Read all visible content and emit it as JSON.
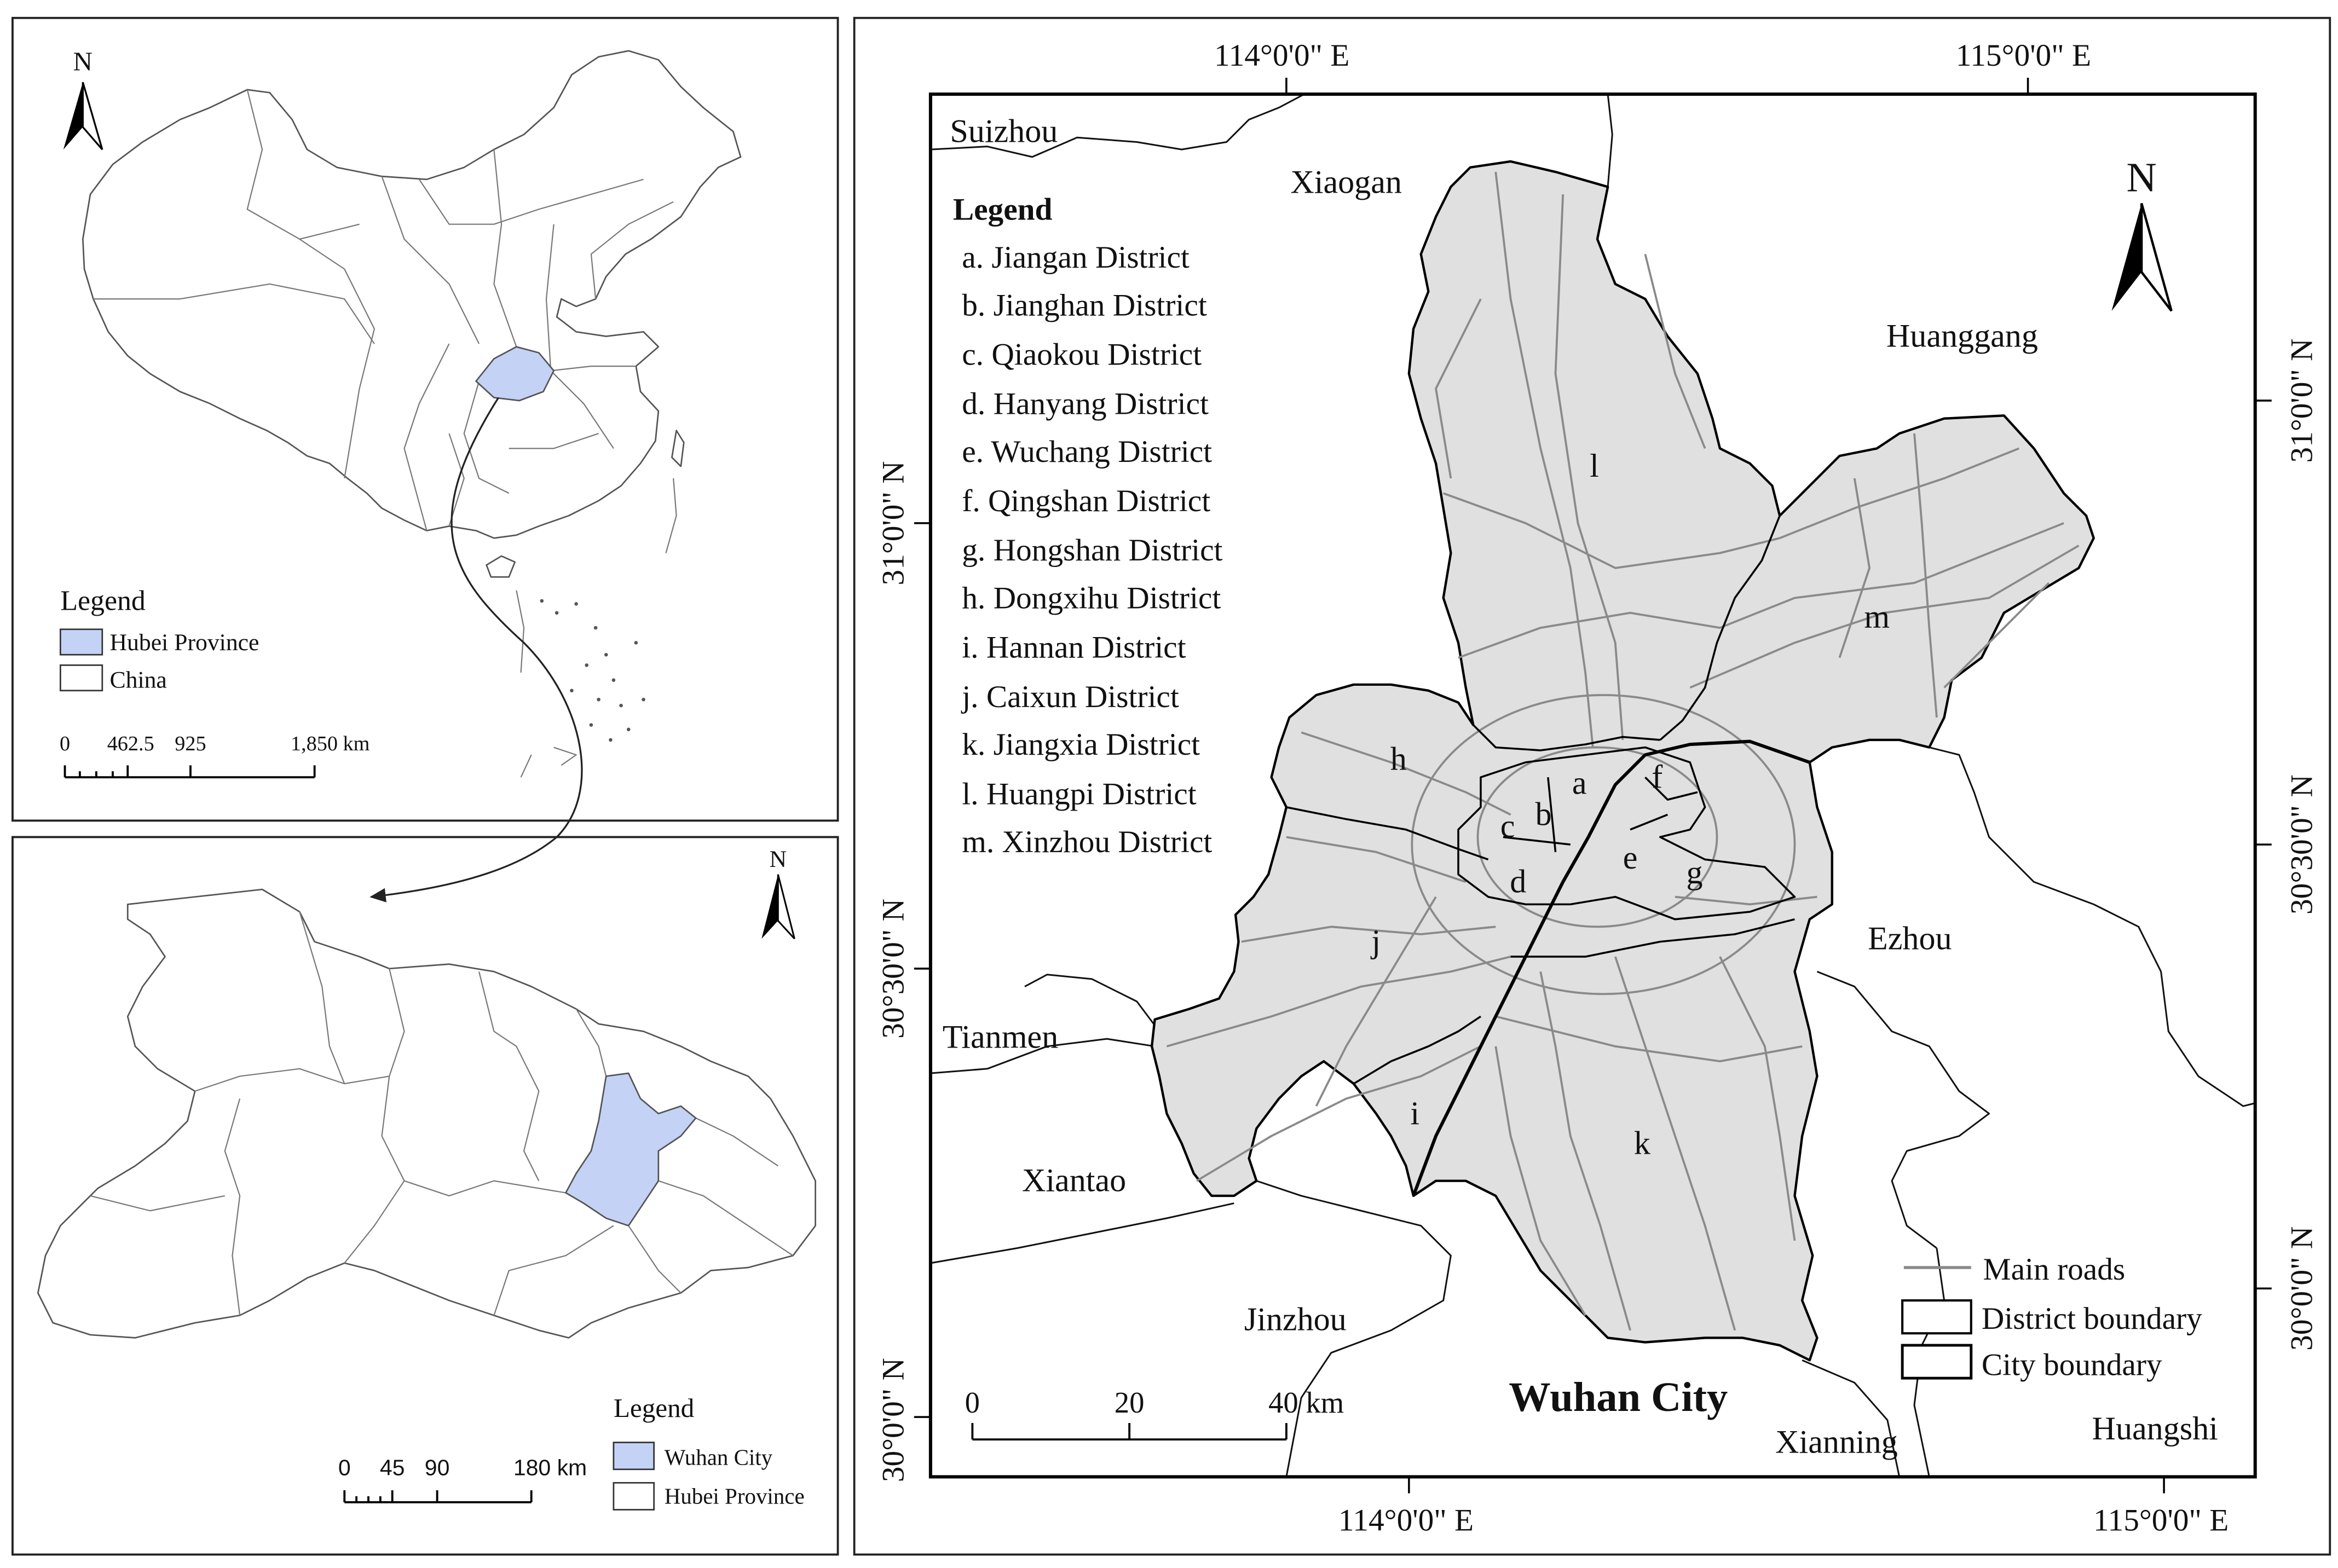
{
  "china_panel": {
    "north_label": "N",
    "legend_title": "Legend",
    "legend_items": [
      {
        "label": "Hubei Province",
        "color": "#c4d2f5"
      },
      {
        "label": "China",
        "color": "#ffffff"
      }
    ],
    "scale_labels": [
      "0",
      "462.5",
      "925",
      "1,850 km"
    ]
  },
  "hubei_panel": {
    "north_label": "N",
    "legend_title": "Legend",
    "legend_items": [
      {
        "label": "Wuhan City",
        "color": "#c4d2f5"
      },
      {
        "label": "Hubei Province",
        "color": "#ffffff"
      }
    ],
    "scale_labels": [
      "0",
      "45",
      "90",
      "180 km"
    ]
  },
  "wuhan_panel": {
    "title": "Wuhan City",
    "north_label": "N",
    "longitude_labels": [
      "114°0'0\" E",
      "115°0'0\" E"
    ],
    "latitude_labels": [
      "31°0'0\" N",
      "30°30'0\" N",
      "30°0'0\" N"
    ],
    "neighbors": [
      "Suizhou",
      "Xiaogan",
      "Huanggang",
      "Ezhou",
      "Tianmen",
      "Xiantao",
      "Jinzhou",
      "Xianning",
      "Huangshi"
    ],
    "legend_title": "Legend",
    "districts": [
      {
        "letter": "a",
        "label": "a. Jiangan District"
      },
      {
        "letter": "b",
        "label": "b. Jianghan District"
      },
      {
        "letter": "c",
        "label": "c. Qiaokou District"
      },
      {
        "letter": "d",
        "label": "d. Hanyang District"
      },
      {
        "letter": "e",
        "label": "e. Wuchang District"
      },
      {
        "letter": "f",
        "label": "f. Qingshan District"
      },
      {
        "letter": "g",
        "label": "g. Hongshan District"
      },
      {
        "letter": "h",
        "label": "h. Dongxihu District"
      },
      {
        "letter": "i",
        "label": "i. Hannan District"
      },
      {
        "letter": "j",
        "label": "j. Caixun District"
      },
      {
        "letter": "k",
        "label": "k. Jiangxia District"
      },
      {
        "letter": "l",
        "label": "l. Huangpi District"
      },
      {
        "letter": "m",
        "label": "m. Xinzhou District"
      }
    ],
    "symbol_legend": [
      "Main roads",
      "District boundary",
      "City boundary"
    ],
    "scale_labels": [
      "0",
      "20",
      "40 km"
    ],
    "colors": {
      "city_fill": "#e0e0e0",
      "roads": "#8a8a8a"
    }
  }
}
